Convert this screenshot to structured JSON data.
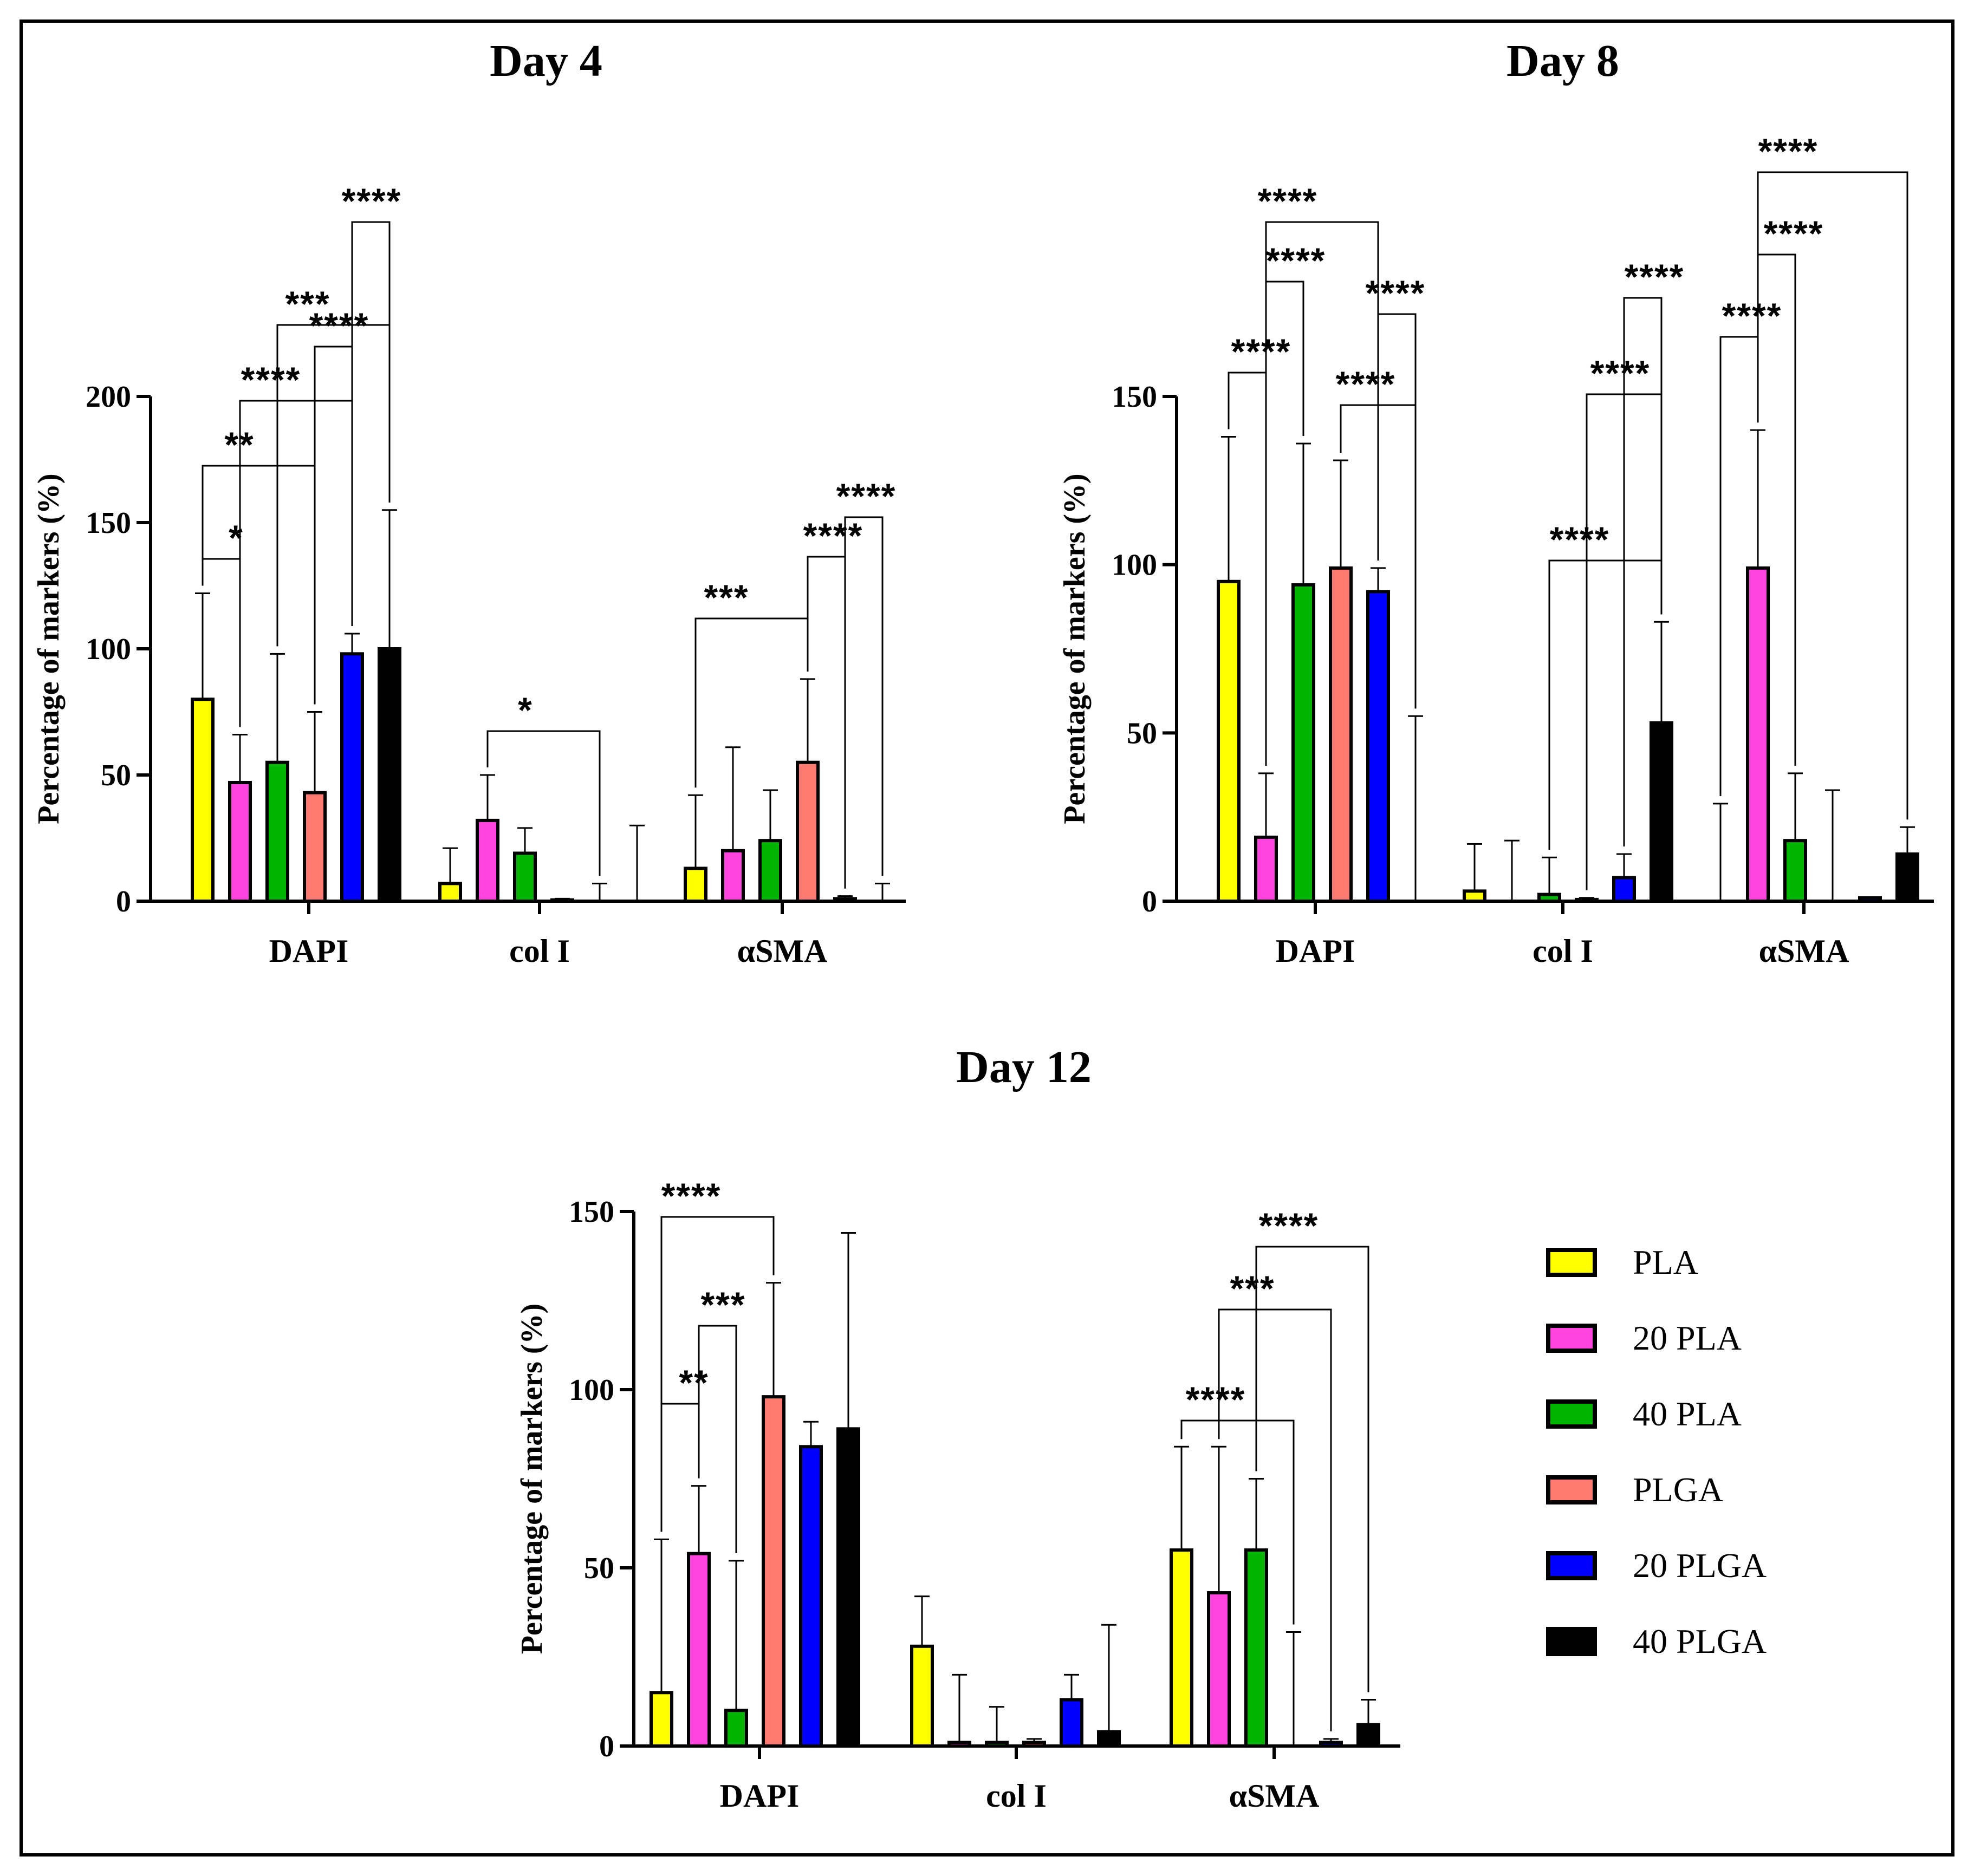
{
  "colors": {
    "PLA": "#ffff00",
    "20 PLA": "#ff44dd",
    "40 PLA": "#00b400",
    "PLGA": "#ff7b72",
    "20 PLGA": "#0000ff",
    "40 PLGA": "#000000"
  },
  "legend": [
    "PLA",
    "20 PLA",
    "40 PLA",
    "PLGA",
    "20 PLGA",
    "40 PLGA"
  ],
  "chart_data": [
    {
      "type": "bar",
      "title": "Day 4",
      "ylabel": "Percentage of markers (%)",
      "ylim": [
        0,
        200
      ],
      "yticks": [
        "0",
        "50",
        "100",
        "150",
        "200"
      ],
      "categories": [
        "DAPI",
        "col I",
        "αSMA"
      ],
      "series": [
        {
          "name": "PLA",
          "values": [
            80,
            7,
            13
          ],
          "errors": [
            42,
            14,
            29
          ]
        },
        {
          "name": "20 PLA",
          "values": [
            47,
            32,
            20
          ],
          "errors": [
            19,
            18,
            41
          ]
        },
        {
          "name": "40 PLA",
          "values": [
            55,
            19,
            24
          ],
          "errors": [
            43,
            10,
            20
          ]
        },
        {
          "name": "PLGA",
          "values": [
            43,
            0.5,
            55
          ],
          "errors": [
            32,
            0.5,
            33
          ]
        },
        {
          "name": "20 PLGA",
          "values": [
            98,
            0,
            1
          ],
          "errors": [
            8,
            7,
            1
          ]
        },
        {
          "name": "40 PLGA",
          "values": [
            100,
            0,
            0
          ],
          "errors": [
            55,
            30,
            7
          ]
        }
      ],
      "significance": [
        {
          "label": "*",
          "from": [
            0,
            0
          ],
          "to": [
            0,
            1
          ]
        },
        {
          "label": "**",
          "from": [
            0,
            0
          ],
          "to": [
            0,
            3
          ]
        },
        {
          "label": "****",
          "from": [
            0,
            1
          ],
          "to": [
            0,
            4
          ]
        },
        {
          "label": "****",
          "from": [
            0,
            3
          ],
          "to": [
            0,
            4
          ]
        },
        {
          "label": "***",
          "from": [
            0,
            2
          ],
          "to": [
            0,
            5
          ]
        },
        {
          "label": "****",
          "from": [
            0,
            4
          ],
          "to": [
            0,
            5
          ]
        },
        {
          "label": "*",
          "from": [
            1,
            1
          ],
          "to": [
            1,
            4
          ]
        },
        {
          "label": "***",
          "from": [
            2,
            0
          ],
          "to": [
            2,
            3
          ]
        },
        {
          "label": "****",
          "from": [
            2,
            3
          ],
          "to": [
            2,
            4
          ]
        },
        {
          "label": "****",
          "from": [
            2,
            4
          ],
          "to": [
            2,
            5
          ]
        }
      ]
    },
    {
      "type": "bar",
      "title": "Day 8",
      "ylabel": "Percentage of markers (%)",
      "ylim": [
        0,
        150
      ],
      "yticks": [
        "0",
        "50",
        "100",
        "150"
      ],
      "categories": [
        "DAPI",
        "col I",
        "αSMA"
      ],
      "series": [
        {
          "name": "PLA",
          "values": [
            95,
            3,
            0
          ],
          "errors": [
            43,
            14,
            29
          ]
        },
        {
          "name": "20 PLA",
          "values": [
            19,
            0,
            99
          ],
          "errors": [
            19,
            18,
            41
          ]
        },
        {
          "name": "40 PLA",
          "values": [
            94,
            2,
            18
          ],
          "errors": [
            42,
            11,
            20
          ]
        },
        {
          "name": "PLGA",
          "values": [
            99,
            0.5,
            0
          ],
          "errors": [
            32,
            0.5,
            33
          ]
        },
        {
          "name": "20 PLGA",
          "values": [
            92,
            7,
            1
          ],
          "errors": [
            7,
            7,
            0
          ]
        },
        {
          "name": "40 PLGA",
          "values": [
            0,
            53,
            14
          ],
          "errors": [
            55,
            30,
            8
          ]
        }
      ],
      "significance": [
        {
          "label": "****",
          "from": [
            0,
            0
          ],
          "to": [
            0,
            1
          ]
        },
        {
          "label": "****",
          "from": [
            0,
            1
          ],
          "to": [
            0,
            2
          ]
        },
        {
          "label": "****",
          "from": [
            0,
            1
          ],
          "to": [
            0,
            4
          ]
        },
        {
          "label": "****",
          "from": [
            0,
            3
          ],
          "to": [
            0,
            5
          ]
        },
        {
          "label": "****",
          "from": [
            0,
            4
          ],
          "to": [
            0,
            5
          ]
        },
        {
          "label": "****",
          "from": [
            1,
            2
          ],
          "to": [
            1,
            5
          ]
        },
        {
          "label": "****",
          "from": [
            1,
            3
          ],
          "to": [
            1,
            5
          ]
        },
        {
          "label": "****",
          "from": [
            1,
            4
          ],
          "to": [
            1,
            5
          ]
        },
        {
          "label": "****",
          "from": [
            2,
            0
          ],
          "to": [
            2,
            1
          ]
        },
        {
          "label": "****",
          "from": [
            2,
            1
          ],
          "to": [
            2,
            2
          ]
        },
        {
          "label": "****",
          "from": [
            2,
            1
          ],
          "to": [
            2,
            5
          ]
        }
      ]
    },
    {
      "type": "bar",
      "title": "Day 12",
      "ylabel": "Percentage of markers (%)",
      "ylim": [
        0,
        150
      ],
      "yticks": [
        "0",
        "50",
        "100",
        "150"
      ],
      "categories": [
        "DAPI",
        "col I",
        "αSMA"
      ],
      "series": [
        {
          "name": "PLA",
          "values": [
            15,
            28,
            55
          ],
          "errors": [
            43,
            14,
            29
          ]
        },
        {
          "name": "20 PLA",
          "values": [
            54,
            1,
            43
          ],
          "errors": [
            19,
            19,
            41
          ]
        },
        {
          "name": "40 PLA",
          "values": [
            10,
            1,
            55
          ],
          "errors": [
            42,
            10,
            20
          ]
        },
        {
          "name": "PLGA",
          "values": [
            98,
            1,
            0
          ],
          "errors": [
            32,
            1,
            32
          ]
        },
        {
          "name": "20 PLGA",
          "values": [
            84,
            13,
            1
          ],
          "errors": [
            7,
            7,
            1
          ]
        },
        {
          "name": "40 PLGA",
          "values": [
            89,
            4,
            6
          ],
          "errors": [
            55,
            30,
            7
          ]
        }
      ],
      "significance": [
        {
          "label": "**",
          "from": [
            0,
            0
          ],
          "to": [
            0,
            1
          ]
        },
        {
          "label": "***",
          "from": [
            0,
            1
          ],
          "to": [
            0,
            2
          ]
        },
        {
          "label": "****",
          "from": [
            0,
            0
          ],
          "to": [
            0,
            3
          ]
        },
        {
          "label": "****",
          "from": [
            2,
            0
          ],
          "to": [
            2,
            3
          ]
        },
        {
          "label": "***",
          "from": [
            2,
            1
          ],
          "to": [
            2,
            4
          ]
        },
        {
          "label": "****",
          "from": [
            2,
            2
          ],
          "to": [
            2,
            5
          ]
        }
      ]
    }
  ]
}
